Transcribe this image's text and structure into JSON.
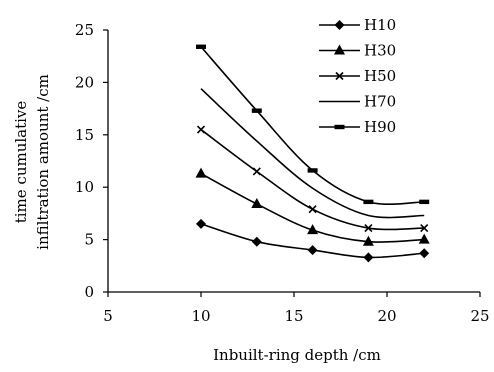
{
  "chart_data": {
    "type": "line",
    "title": "",
    "xlabel": "Inbuilt-ring depth /cm",
    "ylabel_line1": "time cumulative",
    "ylabel_line2": "infiltration amount /cm",
    "xlim": [
      5,
      25
    ],
    "ylim": [
      0,
      25
    ],
    "xticks": [
      "5",
      "10",
      "15",
      "20",
      "25"
    ],
    "yticks": [
      "0",
      "5",
      "10",
      "15",
      "20",
      "25"
    ],
    "grid": false,
    "legend_position": "top-right",
    "x": [
      10,
      13,
      16,
      19,
      22
    ],
    "series": [
      {
        "name": "H10",
        "marker": "diamond",
        "values": [
          6.5,
          4.8,
          4.0,
          3.3,
          3.7
        ]
      },
      {
        "name": "H30",
        "marker": "triangle",
        "values": [
          11.3,
          8.4,
          5.9,
          4.8,
          5.0
        ]
      },
      {
        "name": "H50",
        "marker": "x",
        "values": [
          15.5,
          11.5,
          7.9,
          6.1,
          6.1
        ]
      },
      {
        "name": "H70",
        "marker": "none",
        "values": [
          19.4,
          14.4,
          9.9,
          7.3,
          7.3
        ]
      },
      {
        "name": "H90",
        "marker": "dash",
        "values": [
          23.4,
          17.3,
          11.6,
          8.6,
          8.6
        ]
      }
    ],
    "line_color": "#000000"
  }
}
